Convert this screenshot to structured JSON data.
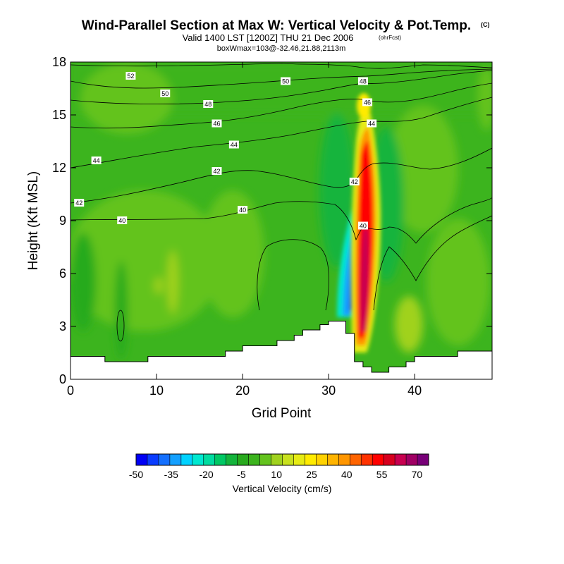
{
  "header": {
    "title": "Wind-Parallel Section at Max W: Vertical Velocity & Pot.Temp.",
    "title_mark": "(C)",
    "subtitle": "Valid 1400 LST [1200Z] THU 21 Dec 2006",
    "subtitle_mark": "(ohrFcst)",
    "subtitle2": "boxWmax=103@-32.46,21.88,2113m"
  },
  "chart_data": {
    "type": "heatmap",
    "title": "Wind-Parallel Section at Max W: Vertical Velocity & Pot.Temp.",
    "xlabel": "Grid Point",
    "ylabel": "Height (Kft MSL)",
    "xlim": [
      0,
      49
    ],
    "ylim": [
      0,
      18
    ],
    "x_ticks": [
      0,
      10,
      20,
      30,
      40
    ],
    "y_ticks": [
      0,
      3,
      6,
      9,
      12,
      15,
      18
    ],
    "fill_variable": "Vertical Velocity (cm/s)",
    "contour_variable": "Potential temperature (C)",
    "colorbar": {
      "label": "Vertical Velocity (cm/s)",
      "levels": [
        -50,
        -45,
        -40,
        -35,
        -30,
        -25,
        -20,
        -15,
        -10,
        -5,
        0,
        5,
        10,
        15,
        20,
        25,
        30,
        35,
        40,
        45,
        50,
        55,
        60,
        65,
        70,
        75
      ],
      "colors": [
        "#0000f5",
        "#0a3cff",
        "#1470ff",
        "#14a0ff",
        "#00d2ff",
        "#00e8d0",
        "#00dca0",
        "#00c864",
        "#14b43c",
        "#28aa1e",
        "#3cb41e",
        "#64c31e",
        "#a0d21e",
        "#c8e11e",
        "#e6eb14",
        "#ffeb00",
        "#ffd200",
        "#ffb400",
        "#ff9600",
        "#ff6400",
        "#ff3200",
        "#ff0000",
        "#d7001e",
        "#c80050",
        "#a00064",
        "#780078"
      ],
      "tick_labels": [
        "-50",
        "-35",
        "-20",
        "-5",
        "10",
        "25",
        "40",
        "55",
        "70"
      ]
    },
    "contour_labels": [
      {
        "value": "52",
        "x": 7,
        "y": 17.2
      },
      {
        "value": "50",
        "x": 11,
        "y": 16.2
      },
      {
        "value": "50",
        "x": 25,
        "y": 16.9
      },
      {
        "value": "48",
        "x": 16,
        "y": 15.6
      },
      {
        "value": "48",
        "x": 34,
        "y": 16.9
      },
      {
        "value": "46",
        "x": 17,
        "y": 14.5
      },
      {
        "value": "46",
        "x": 34.5,
        "y": 15.7
      },
      {
        "value": "44",
        "x": 3,
        "y": 12.4
      },
      {
        "value": "44",
        "x": 19,
        "y": 13.3
      },
      {
        "value": "44",
        "x": 35,
        "y": 14.5
      },
      {
        "value": "42",
        "x": 1,
        "y": 10.0
      },
      {
        "value": "42",
        "x": 17,
        "y": 11.8
      },
      {
        "value": "42",
        "x": 33,
        "y": 11.2
      },
      {
        "value": "40",
        "x": 6,
        "y": 9.0
      },
      {
        "value": "40",
        "x": 20,
        "y": 9.6
      },
      {
        "value": "40",
        "x": 34,
        "y": 8.7
      }
    ],
    "terrain_heights_kft": [
      1.3,
      1.3,
      1.3,
      1.3,
      1.0,
      1.0,
      1.0,
      1.0,
      1.0,
      1.3,
      1.3,
      1.3,
      1.3,
      1.3,
      1.3,
      1.3,
      1.3,
      1.3,
      1.6,
      1.6,
      1.9,
      1.9,
      1.9,
      1.9,
      2.2,
      2.2,
      2.5,
      2.8,
      2.8,
      3.1,
      3.3,
      3.3,
      2.6,
      1.0,
      0.7,
      0.4,
      0.4,
      0.7,
      0.7,
      1.0,
      1.3,
      1.3,
      1.3,
      1.3,
      1.3,
      1.6,
      1.6,
      1.6,
      1.6,
      1.6
    ],
    "theta_contours_c": [
      40,
      42,
      44,
      46,
      48,
      50,
      52
    ]
  }
}
